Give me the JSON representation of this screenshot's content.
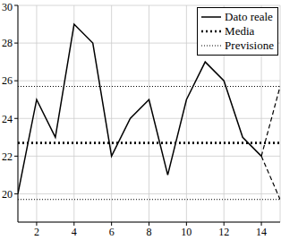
{
  "chart_data": {
    "type": "line",
    "x": [
      1,
      2,
      3,
      4,
      5,
      6,
      7,
      8,
      9,
      10,
      11,
      12,
      13,
      14,
      15
    ],
    "xlim": [
      1,
      15
    ],
    "xticks": [
      2,
      4,
      6,
      8,
      10,
      12,
      14
    ],
    "ylim": [
      18.5,
      30
    ],
    "yticks": [
      20,
      22,
      24,
      26,
      28,
      30
    ],
    "grid": true,
    "legend": "top-right",
    "series": [
      {
        "name": "Dato reale",
        "color": "#000000",
        "line_style": "solid",
        "values": [
          20,
          25,
          23,
          29,
          28,
          22,
          24,
          25,
          21,
          25,
          27,
          26,
          23,
          22,
          null
        ]
      },
      {
        "name": "Media",
        "color": "#000000",
        "line_style": "dotted",
        "values": [
          22.7,
          22.7,
          22.7,
          22.7,
          22.7,
          22.7,
          22.7,
          22.7,
          22.7,
          22.7,
          22.7,
          22.7,
          22.7,
          22.7,
          22.7
        ]
      },
      {
        "name": "Previsione",
        "color": "#000000",
        "line_style": "dotted",
        "upper": [
          25.7,
          25.7,
          25.7,
          25.7,
          25.7,
          25.7,
          25.7,
          25.7,
          25.7,
          25.7,
          25.7,
          25.7,
          25.7,
          25.7,
          25.7
        ],
        "lower": [
          19.7,
          19.7,
          19.7,
          19.7,
          19.7,
          19.7,
          19.7,
          19.7,
          19.7,
          19.7,
          19.7,
          19.7,
          19.7,
          19.7,
          19.7
        ]
      }
    ]
  }
}
